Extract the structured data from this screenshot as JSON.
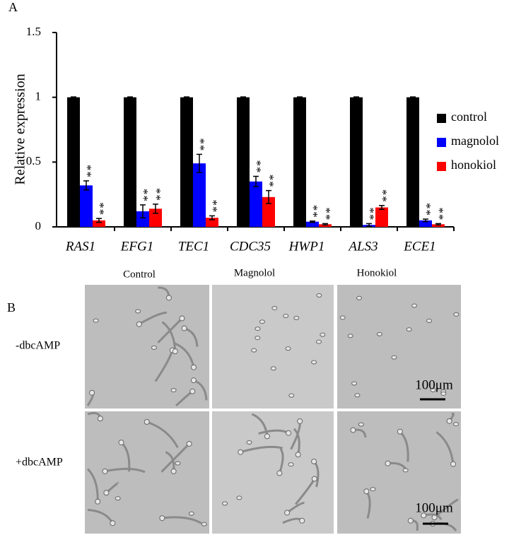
{
  "panel_labels": [
    "A",
    "B"
  ],
  "chart_data": {
    "type": "bar",
    "ylabel": "Relative expression",
    "categories": [
      "RAS1",
      "EFG1",
      "TEC1",
      "CDC35",
      "HWP1",
      "ALS3",
      "ECE1"
    ],
    "series": [
      {
        "name": "control",
        "color": "#000000",
        "values": [
          1,
          1,
          1,
          1,
          1,
          1,
          1
        ],
        "errors": [
          0.003,
          0.003,
          0.003,
          0.003,
          0.003,
          0.003,
          0.003
        ]
      },
      {
        "name": "magnolol",
        "color": "#0000ff",
        "values": [
          0.32,
          0.12,
          0.49,
          0.35,
          0.04,
          0.015,
          0.05
        ],
        "errors": [
          0.035,
          0.05,
          0.07,
          0.04,
          0.005,
          0.01,
          0.01
        ],
        "labels": [
          "**",
          "**",
          "**",
          "**",
          "**",
          "**",
          "**"
        ]
      },
      {
        "name": "honokiol",
        "color": "#ff0000",
        "values": [
          0.05,
          0.14,
          0.07,
          0.23,
          0.02,
          0.15,
          0.02
        ],
        "errors": [
          0.015,
          0.035,
          0.015,
          0.05,
          0.005,
          0.015,
          0.005
        ],
        "labels": [
          "**",
          "**",
          "**",
          "**",
          "**",
          "**",
          "**"
        ]
      }
    ],
    "ylim": [
      0,
      1.5
    ],
    "yticks": [
      0,
      0.5,
      1,
      1.5
    ],
    "legend": "right"
  },
  "images": {
    "columns": [
      "Control",
      "Magnolol",
      "Honokiol"
    ],
    "rows": [
      "-dbcAMP",
      "+dbcAMP"
    ],
    "scale_bars": [
      "100μm",
      "100μm"
    ]
  }
}
